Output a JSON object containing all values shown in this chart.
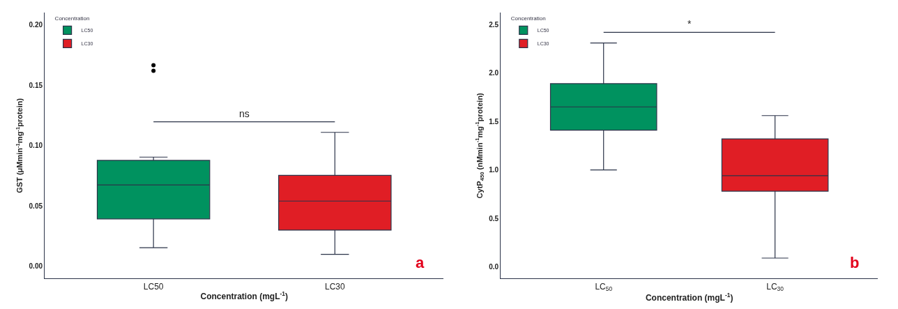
{
  "chart_data": [
    {
      "type": "box",
      "categories": [
        "LC50",
        "LC30"
      ],
      "series": [
        {
          "name": "LC50",
          "color": "#00925f",
          "boxes": [
            {
              "low": 0.0155,
              "q1": 0.0393,
              "median": 0.0674,
              "q3": 0.0878,
              "high": 0.0905,
              "outliers": [
                0.162,
                0.1667
              ]
            },
            null
          ]
        },
        {
          "name": "LC30",
          "color": "#e01e25",
          "boxes": [
            null,
            {
              "low": 0.01,
              "q1": 0.03,
              "median": 0.0541,
              "q3": 0.0754,
              "high": 0.111
            }
          ]
        }
      ],
      "xlabel": "Concentration (mgL$^{-1}$)",
      "ylabel": "GST (μMmin$^{-1}$mg$^{-1}$protein)",
      "legend_title": "Concentration",
      "legend": "top left",
      "ylim": [
        -0.01,
        0.21
      ],
      "yticks": [
        {
          "value": 0,
          "label": "0.00"
        },
        0.05,
        {
          "value": 0.1,
          "label": "0.10"
        },
        0.15,
        {
          "value": 0.2,
          "label": "0.20"
        }
      ],
      "annotations": [
        "ns",
        "a"
      ]
    },
    {
      "type": "box",
      "categories": [
        "LC$_{50}$",
        "LC$_{30}$"
      ],
      "series": [
        {
          "name": "LC50",
          "color": "#00925f",
          "boxes": [
            {
              "low": 1.0,
              "q1": 1.41,
              "median": 1.65,
              "q3": 1.89,
              "high": 2.31
            },
            null
          ]
        },
        {
          "name": "LC30",
          "color": "#e01e25",
          "boxes": [
            null,
            {
              "low": 0.09,
              "q1": 0.78,
              "median": 0.94,
              "q3": 1.32,
              "high": 1.56
            }
          ]
        }
      ],
      "xlabel": "Concentration (mgL$^{-1}$)",
      "ylabel": "CytP$_{450}$ (nMmin$^{-1}$mg$^{-1}$protein)",
      "legend_title": "Concentration",
      "legend": "top left",
      "ylim": [
        -0.12,
        2.62
      ],
      "yticks": [
        {
          "value": 0,
          "label": "0.0"
        },
        0.5,
        {
          "value": 1,
          "label": "1.0"
        },
        1.5,
        {
          "value": 2,
          "label": "2.0"
        },
        2.5
      ],
      "annotations": [
        "*",
        "b"
      ]
    }
  ]
}
